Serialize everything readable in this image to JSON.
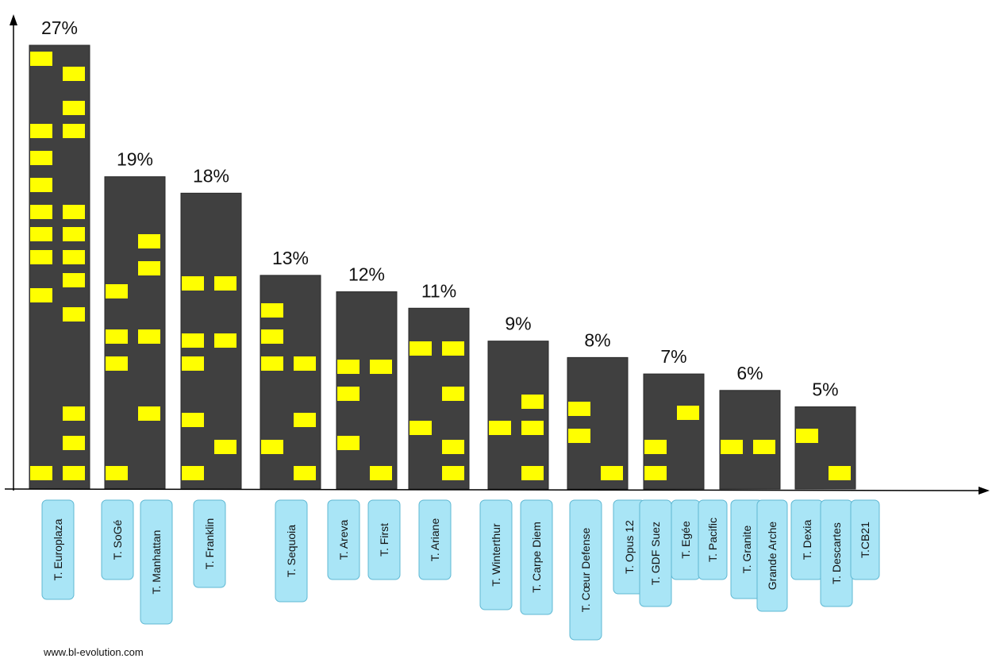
{
  "colors": {
    "bar": "#404040",
    "window": "#ffff00",
    "label_fill": "#a9e5f6",
    "label_stroke": "#5fb8d3",
    "axis": "#000000"
  },
  "source": "www.bl-evolution.com",
  "chart_data": {
    "type": "bar",
    "categories": [
      "27%",
      "19%",
      "18%",
      "13%",
      "12%",
      "11%",
      "9%",
      "8%",
      "7%",
      "6%",
      "5%"
    ],
    "values": [
      27,
      19,
      18,
      13,
      12,
      11,
      9,
      8,
      7,
      6,
      5
    ],
    "value_labels": [
      "27%",
      "19%",
      "18%",
      "13%",
      "12%",
      "11%",
      "9%",
      "8%",
      "7%",
      "6%",
      "5%"
    ],
    "tower_labels": [
      [
        "T. Europlaza"
      ],
      [
        "T. SoGé",
        "T. Manhattan"
      ],
      [
        "T. Franklin"
      ],
      [
        "T. Sequoia"
      ],
      [
        "T. Areva",
        "T. First"
      ],
      [
        "T. Ariane"
      ],
      [
        "T. Winterthur",
        "T. Carpe Diem"
      ],
      [
        "T. Cœur Defense"
      ],
      [
        "T. Opus 12",
        "T. GDF Suez",
        "T. Egée",
        "T. Pacific"
      ],
      [
        "T. Granite",
        "Grande Arche"
      ],
      [
        "T. Dexia",
        "T. Descartes",
        "T.CB21"
      ]
    ],
    "xlabel": "",
    "ylabel": "",
    "ylim": [
      0,
      27
    ],
    "grid": false,
    "legend": "none"
  }
}
